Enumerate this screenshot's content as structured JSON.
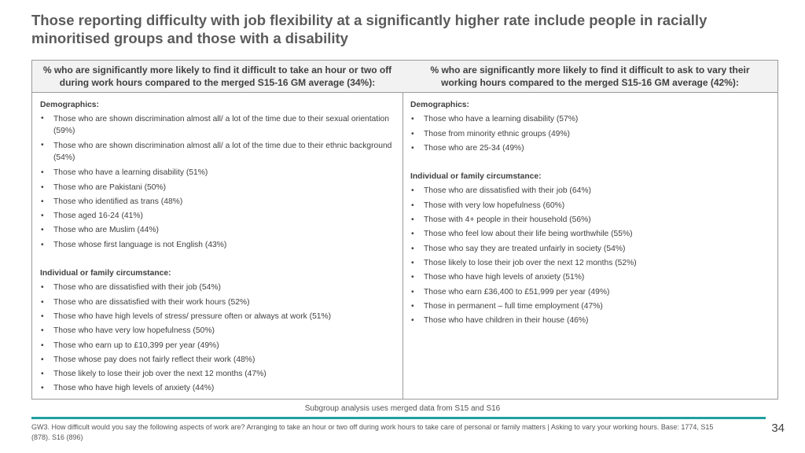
{
  "title": "Those reporting difficulty with job flexibility at a significantly higher rate include people in racially minoritised groups and those with a disability",
  "left_column": {
    "header": "% who are significantly more likely to find it difficult to take an hour or two off during work hours compared to the merged S15-16 GM average (34%):",
    "demographics_title": "Demographics:",
    "demographics": [
      "Those who are shown discrimination almost all/ a lot of the time due to their sexual orientation (59%)",
      "Those who are shown discrimination almost all/ a lot of the time due to their ethnic background (54%)",
      "Those who have a learning disability (51%)",
      "Those who are Pakistani (50%)",
      "Those who identified as trans (48%)",
      "Those aged 16-24 (41%)",
      "Those who are Muslim (44%)",
      "Those whose first language is not English (43%)"
    ],
    "circumstance_title": "Individual or family circumstance:",
    "circumstances": [
      "Those who are dissatisfied with their job (54%)",
      "Those who are dissatisfied with their work hours (52%)",
      "Those who have high levels of stress/ pressure often or always at work (51%)",
      "Those who have very low hopefulness (50%)",
      "Those who earn up to £10,399 per year (49%)",
      "Those whose pay does not fairly reflect their work (48%)",
      "Those likely to lose their job over the next 12 months (47%)",
      "Those who have high levels of anxiety (44%)"
    ]
  },
  "right_column": {
    "header": "% who are significantly more likely to find it difficult to ask to vary their working hours compared to the merged S15-16 GM average (42%):",
    "demographics_title": "Demographics:",
    "demographics": [
      "Those who have a learning disability (57%)",
      "Those from minority ethnic groups (49%)",
      "Those who are 25-34 (49%)"
    ],
    "circumstance_title": "Individual or family circumstance:",
    "circumstances": [
      "Those who are dissatisfied with their job (64%)",
      "Those with very low hopefulness (60%)",
      "Those with 4+ people in their household (56%)",
      "Those who feel low about their life being worthwhile (55%)",
      "Those who say they are treated unfairly in society (54%)",
      "Those likely to lose their job over the next 12 months (52%)",
      "Those who have high levels of anxiety (51%)",
      "Those who earn £36,400 to £51,999 per year (49%)",
      "Those in permanent – full time employment (47%)",
      "Those who have children in their house (46%)"
    ]
  },
  "subgroup_note": "Subgroup analysis uses merged data from S15 and S16",
  "footnote": "GW3. How difficult would you say the following aspects of work are? Arranging to take an hour or two off during work hours to take care of personal or family matters | Asking to vary your working hours. Base: 1774, S15 (878). S16 (896)",
  "page_number": "34",
  "colors": {
    "accent_rule": "#1f9fa0",
    "header_bg": "#f2f2f2",
    "border": "#9a9a9a"
  }
}
